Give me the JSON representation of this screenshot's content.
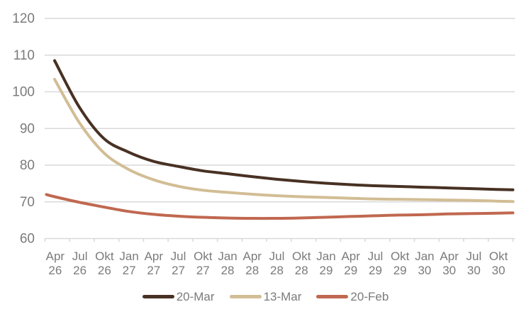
{
  "chart_data": {
    "type": "line",
    "title": "",
    "xlabel": "",
    "ylabel": "",
    "ylim": [
      60,
      120
    ],
    "yticks": [
      60,
      70,
      80,
      90,
      100,
      110,
      120
    ],
    "grid": "horizontal-only",
    "x_axis": {
      "unit": "month",
      "month_index_base": "0 = Mar 2026, 57 = Dec 2030 (plotted range)",
      "tick_labels": [
        {
          "m": "Apr",
          "y": "26"
        },
        {
          "m": "Jul",
          "y": "26"
        },
        {
          "m": "Okt",
          "y": "26"
        },
        {
          "m": "Jan",
          "y": "27"
        },
        {
          "m": "Apr",
          "y": "27"
        },
        {
          "m": "Jul",
          "y": "27"
        },
        {
          "m": "Okt",
          "y": "27"
        },
        {
          "m": "Jan",
          "y": "28"
        },
        {
          "m": "Apr",
          "y": "28"
        },
        {
          "m": "Jul",
          "y": "28"
        },
        {
          "m": "Okt",
          "y": "28"
        },
        {
          "m": "Jan",
          "y": "29"
        },
        {
          "m": "Apr",
          "y": "29"
        },
        {
          "m": "Jul",
          "y": "29"
        },
        {
          "m": "Okt",
          "y": "29"
        },
        {
          "m": "Jan",
          "y": "30"
        },
        {
          "m": "Apr",
          "y": "30"
        },
        {
          "m": "Jul",
          "y": "30"
        },
        {
          "m": "Okt",
          "y": "30"
        }
      ]
    },
    "legend": {
      "position": "bottom-center",
      "labels": [
        "20-Mar",
        "13-Mar",
        "20-Feb"
      ]
    },
    "series": [
      {
        "name": "20-Mar",
        "color": "#483123",
        "points": [
          [
            1,
            108.5
          ],
          [
            4,
            95.9
          ],
          [
            7,
            87.3
          ],
          [
            10,
            83.6
          ],
          [
            13,
            81.1
          ],
          [
            16,
            79.7
          ],
          [
            19,
            78.5
          ],
          [
            22,
            77.7
          ],
          [
            25,
            76.9
          ],
          [
            28,
            76.2
          ],
          [
            31,
            75.6
          ],
          [
            34,
            75.1
          ],
          [
            37,
            74.7
          ],
          [
            40,
            74.4
          ],
          [
            43,
            74.2
          ],
          [
            46,
            74.0
          ],
          [
            49,
            73.8
          ],
          [
            52,
            73.6
          ],
          [
            55,
            73.4
          ],
          [
            57,
            73.3
          ]
        ]
      },
      {
        "name": "13-Mar",
        "color": "#d2bd95",
        "points": [
          [
            1,
            103.4
          ],
          [
            4,
            91.7
          ],
          [
            7,
            83.4
          ],
          [
            10,
            78.9
          ],
          [
            13,
            76.1
          ],
          [
            16,
            74.3
          ],
          [
            19,
            73.2
          ],
          [
            22,
            72.6
          ],
          [
            25,
            72.1
          ],
          [
            28,
            71.7
          ],
          [
            31,
            71.4
          ],
          [
            34,
            71.2
          ],
          [
            37,
            71.0
          ],
          [
            40,
            70.8
          ],
          [
            43,
            70.7
          ],
          [
            46,
            70.6
          ],
          [
            49,
            70.5
          ],
          [
            52,
            70.4
          ],
          [
            55,
            70.2
          ],
          [
            57,
            70.1
          ]
        ]
      },
      {
        "name": "20-Feb",
        "color": "#c06850",
        "points": [
          [
            0,
            72.0
          ],
          [
            1,
            71.4
          ],
          [
            4,
            69.9
          ],
          [
            7,
            68.6
          ],
          [
            10,
            67.4
          ],
          [
            13,
            66.6
          ],
          [
            16,
            66.1
          ],
          [
            19,
            65.8
          ],
          [
            22,
            65.6
          ],
          [
            25,
            65.5
          ],
          [
            28,
            65.5
          ],
          [
            31,
            65.6
          ],
          [
            34,
            65.8
          ],
          [
            37,
            66.0
          ],
          [
            40,
            66.2
          ],
          [
            43,
            66.4
          ],
          [
            46,
            66.5
          ],
          [
            49,
            66.7
          ],
          [
            52,
            66.8
          ],
          [
            55,
            66.9
          ],
          [
            57,
            67.0
          ]
        ]
      }
    ],
    "colors": {
      "background": "#ffffff",
      "gridline": "#d9d9d9",
      "axis_line": "#d9d9d9",
      "axis_text": "#7b7b7b"
    }
  }
}
